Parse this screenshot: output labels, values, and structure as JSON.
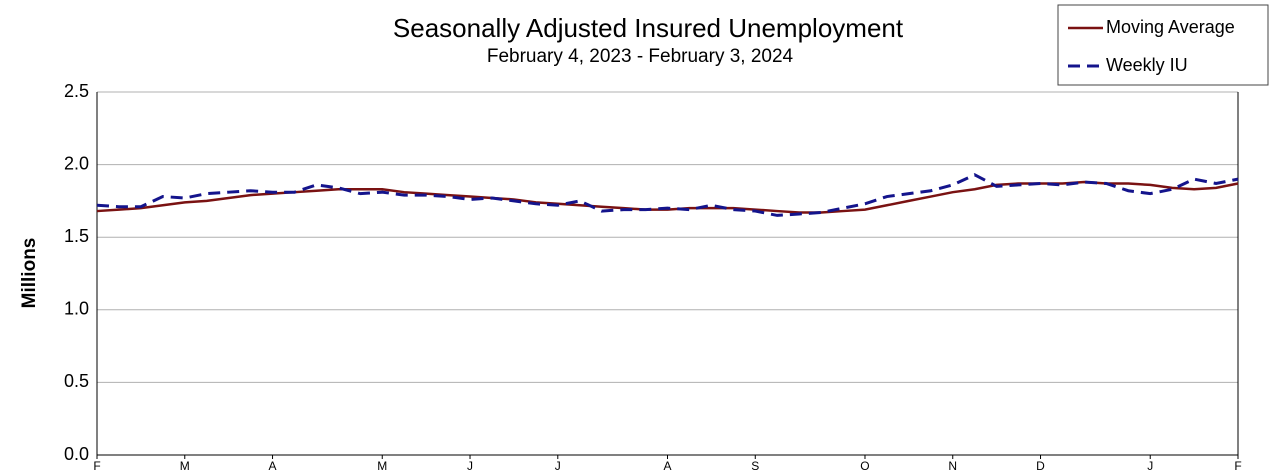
{
  "chart_data": {
    "type": "line",
    "title": "Seasonally Adjusted Insured Unemployment",
    "subtitle": "February 4, 2023 - February 3, 2024",
    "y_label": "Millions",
    "categories": [
      "F",
      null,
      null,
      null,
      "M",
      null,
      null,
      null,
      "A",
      null,
      null,
      null,
      null,
      "M",
      null,
      null,
      null,
      "J",
      null,
      null,
      null,
      "J",
      null,
      null,
      null,
      null,
      "A",
      null,
      null,
      null,
      "S",
      null,
      null,
      null,
      null,
      "O",
      null,
      null,
      null,
      "N",
      null,
      null,
      null,
      "D",
      null,
      null,
      null,
      null,
      "J",
      null,
      null,
      null,
      "F"
    ],
    "series": [
      {
        "name": "Moving Average",
        "color": "#7a1212",
        "dash": false,
        "values": [
          1.68,
          1.69,
          1.7,
          1.72,
          1.74,
          1.75,
          1.77,
          1.79,
          1.8,
          1.81,
          1.82,
          1.83,
          1.83,
          1.83,
          1.81,
          1.8,
          1.79,
          1.78,
          1.77,
          1.76,
          1.74,
          1.73,
          1.72,
          1.71,
          1.7,
          1.69,
          1.69,
          1.7,
          1.7,
          1.7,
          1.69,
          1.68,
          1.67,
          1.67,
          1.68,
          1.69,
          1.72,
          1.75,
          1.78,
          1.81,
          1.83,
          1.86,
          1.87,
          1.87,
          1.87,
          1.88,
          1.87,
          1.87,
          1.86,
          1.84,
          1.83,
          1.84,
          1.87
        ]
      },
      {
        "name": "Weekly IU",
        "color": "#14148c",
        "dash": true,
        "values": [
          1.72,
          1.71,
          1.71,
          1.78,
          1.77,
          1.8,
          1.81,
          1.82,
          1.81,
          1.81,
          1.86,
          1.84,
          1.8,
          1.81,
          1.79,
          1.79,
          1.78,
          1.76,
          1.77,
          1.75,
          1.73,
          1.72,
          1.75,
          1.68,
          1.69,
          1.69,
          1.7,
          1.69,
          1.72,
          1.69,
          1.68,
          1.65,
          1.66,
          1.67,
          1.7,
          1.73,
          1.78,
          1.8,
          1.82,
          1.86,
          1.93,
          1.85,
          1.86,
          1.87,
          1.86,
          1.88,
          1.87,
          1.82,
          1.8,
          1.83,
          1.9,
          1.87,
          1.9
        ]
      }
    ],
    "ylim": [
      0,
      2.5
    ],
    "yticks": [
      {
        "value": 0,
        "label": "0.0"
      },
      0.5,
      {
        "value": 1,
        "label": "1.0"
      },
      1.5,
      {
        "value": 2,
        "label": "2.0"
      },
      2.5
    ],
    "grid": true,
    "legend": "upper right"
  }
}
